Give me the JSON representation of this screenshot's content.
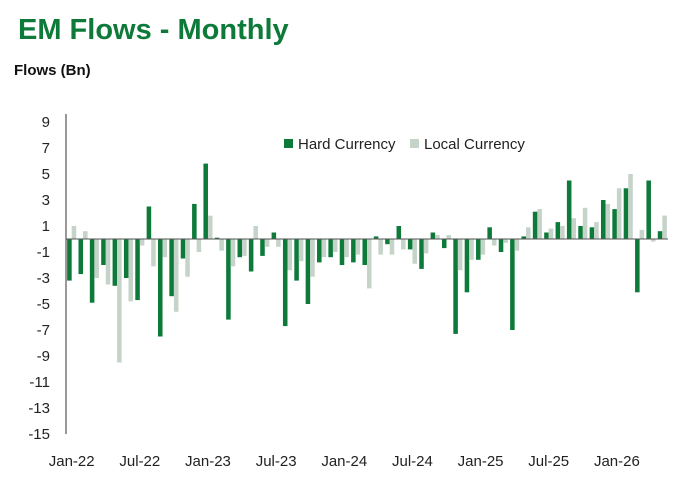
{
  "chart_data": {
    "type": "bar",
    "title": "EM Flows - Monthly",
    "ylabel": "Flows (Bn)",
    "xlabel": "",
    "ylim": [
      -15,
      9
    ],
    "yticks": [
      9,
      7,
      5,
      3,
      1,
      -1,
      -3,
      -5,
      -7,
      -9,
      -11,
      -13,
      -15
    ],
    "xtick_labels": [
      "Jan-22",
      "Jul-22",
      "Jan-23",
      "Jul-23",
      "Jan-24",
      "Jul-24",
      "Jan-25",
      "Jul-25",
      "Jan-26"
    ],
    "legend_position": "top-right",
    "grid": false,
    "categories": [
      "Jan-22",
      "Feb-22",
      "Mar-22",
      "Apr-22",
      "May-22",
      "Jun-22",
      "Jul-22",
      "Aug-22",
      "Sep-22",
      "Oct-22",
      "Nov-22",
      "Dec-22",
      "Jan-23",
      "Feb-23",
      "Mar-23",
      "Apr-23",
      "May-23",
      "Jun-23",
      "Jul-23",
      "Aug-23",
      "Sep-23",
      "Oct-23",
      "Nov-23",
      "Dec-23",
      "Jan-24",
      "Feb-24",
      "Mar-24",
      "Apr-24",
      "May-24",
      "Jun-24",
      "Jul-24",
      "Aug-24",
      "Sep-24",
      "Oct-24",
      "Nov-24",
      "Dec-24",
      "Jan-25",
      "Feb-25",
      "Mar-25",
      "Apr-25",
      "May-25",
      "Jun-25",
      "Jul-25",
      "Aug-25",
      "Sep-25",
      "Oct-25",
      "Nov-25",
      "Dec-25",
      "Jan-26",
      "Feb-26",
      "Mar-26",
      "Apr-26",
      "May-26"
    ],
    "series": [
      {
        "name": "Hard Currency",
        "color": "#0e7a3a",
        "values": [
          -3.2,
          -2.7,
          -4.9,
          -2.0,
          -3.6,
          -3.0,
          -4.7,
          2.5,
          -7.5,
          -4.4,
          -1.5,
          2.7,
          5.8,
          0.1,
          -6.2,
          -1.4,
          -2.5,
          -1.3,
          0.5,
          -6.7,
          -3.2,
          -5.0,
          -1.8,
          -1.4,
          -2.0,
          -1.8,
          -2.0,
          0.2,
          -0.4,
          1.0,
          -0.8,
          -2.3,
          0.5,
          -0.7,
          -7.3,
          -4.1,
          -1.6,
          0.9,
          -1.0,
          -7.0,
          0.2,
          2.1,
          0.5,
          1.3,
          4.5,
          1.0,
          0.9,
          3.0,
          2.3,
          3.9,
          -4.1,
          4.5,
          0.6
        ]
      },
      {
        "name": "Local Currency",
        "color": "#c5d3c9",
        "values": [
          1.0,
          0.6,
          -3.0,
          -3.5,
          -9.5,
          -4.8,
          -0.5,
          -2.1,
          -1.4,
          -5.6,
          -2.9,
          -1.0,
          1.8,
          -0.9,
          -2.1,
          -1.3,
          1.0,
          -0.6,
          -0.6,
          -2.4,
          -1.7,
          -2.9,
          -1.4,
          -1.0,
          -1.4,
          -1.2,
          -3.8,
          -1.2,
          -1.2,
          -0.8,
          -1.9,
          -1.1,
          0.3,
          0.3,
          -2.4,
          -1.6,
          -1.2,
          -0.5,
          -0.3,
          -0.9,
          0.9,
          2.3,
          0.8,
          1.0,
          1.6,
          2.4,
          1.3,
          2.7,
          3.9,
          5.0,
          0.7,
          -0.2,
          1.8
        ]
      }
    ]
  }
}
